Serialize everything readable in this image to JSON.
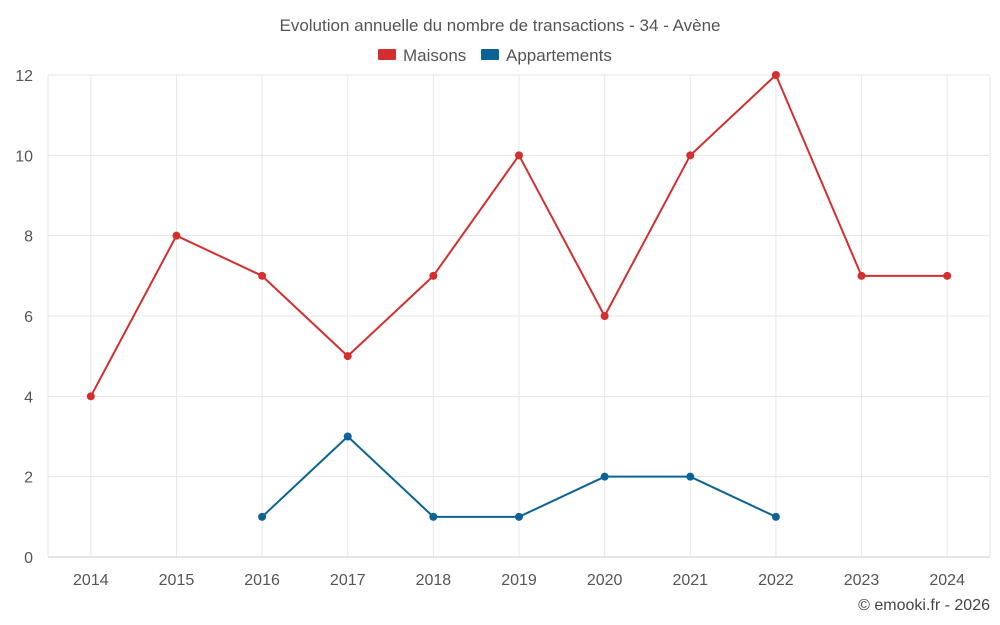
{
  "chart_data": {
    "type": "line",
    "title": "Evolution annuelle du nombre de transactions - 34 - Avène",
    "x": [
      "2014",
      "2015",
      "2016",
      "2017",
      "2018",
      "2019",
      "2020",
      "2021",
      "2022",
      "2023",
      "2024"
    ],
    "yticks": [
      "0",
      "2",
      "4",
      "6",
      "8",
      "10",
      "12"
    ],
    "ylim": [
      0,
      12
    ],
    "grid": true,
    "legend_position": "top-center",
    "series": [
      {
        "name": "Maisons",
        "color": "#d32f2f",
        "values": [
          4,
          8,
          7,
          5,
          7,
          10,
          6,
          10,
          12,
          7,
          7
        ]
      },
      {
        "name": "Appartements",
        "color": "#0d6396",
        "values": [
          null,
          null,
          1,
          3,
          1,
          1,
          2,
          2,
          1,
          null,
          null
        ]
      }
    ]
  },
  "credit": "© emooki.fr - 2026"
}
